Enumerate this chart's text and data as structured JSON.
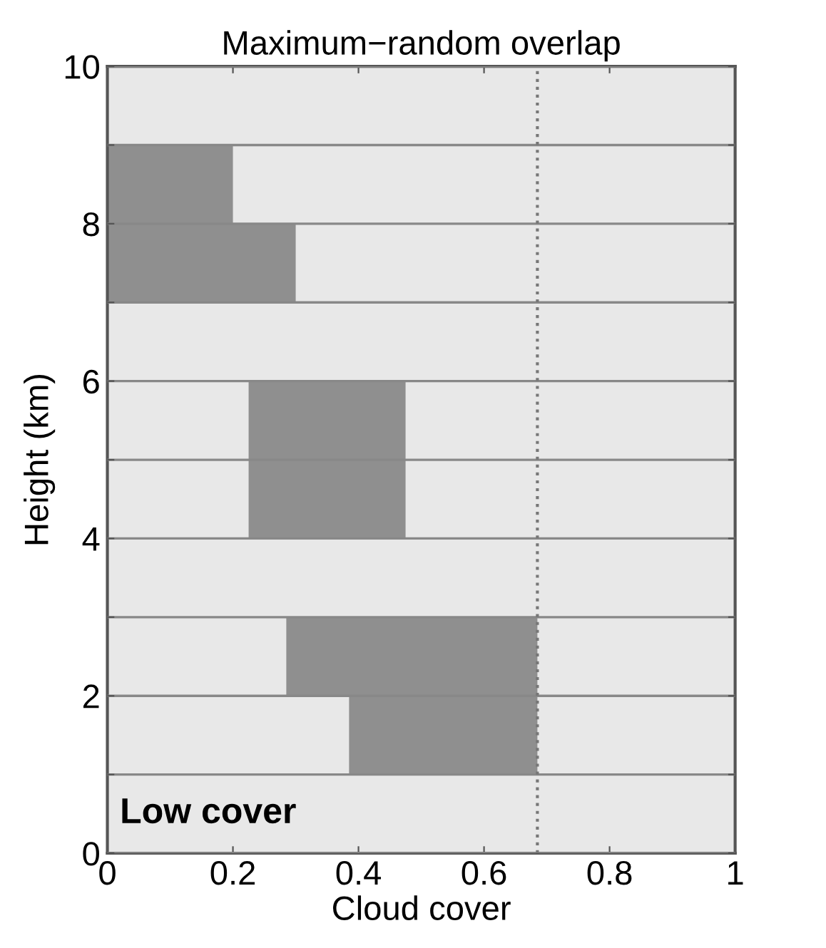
{
  "chart_data": {
    "type": "bar",
    "orientation": "horizontal",
    "title": "Maximum−random overlap",
    "xlabel": "Cloud cover",
    "ylabel": "Height (km)",
    "x": [
      1.5,
      2.5,
      4.5,
      5.5,
      7.5,
      8.5
    ],
    "values": [
      0.3,
      0.4,
      0.25,
      0.25,
      0.3,
      0.2
    ],
    "base": [
      0.385,
      0.285,
      0.225,
      0.225,
      0,
      0
    ],
    "color": "#8f8f8f",
    "xlim": [
      0,
      1
    ],
    "xticks": [
      0,
      0.2,
      0.4,
      0.6,
      0.8,
      1
    ],
    "ylim": [
      0,
      10
    ],
    "yticks": [
      0,
      {
        "value": 1,
        "label": null
      },
      2,
      {
        "value": 3,
        "label": null
      },
      4,
      {
        "value": 5,
        "label": null
      },
      6,
      {
        "value": 7,
        "label": null
      },
      8,
      {
        "value": 9,
        "label": null
      },
      10
    ],
    "grid": "y",
    "ref_lines": [
      {
        "axis": "x",
        "value": 0.685,
        "line_style": "dotted",
        "color": "#777777"
      }
    ],
    "annotations": [
      "Low cover"
    ]
  }
}
